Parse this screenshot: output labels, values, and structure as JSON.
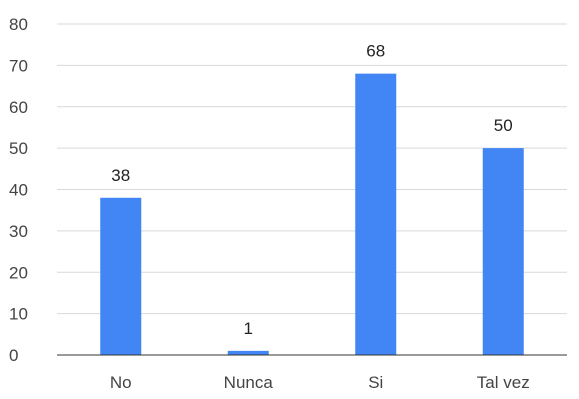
{
  "chart_data": {
    "type": "bar",
    "categories": [
      "No",
      "Nunca",
      "Si",
      "Tal vez"
    ],
    "values": [
      38,
      1,
      68,
      50
    ],
    "data_labels": [
      "38",
      "1",
      "68",
      "50"
    ],
    "title": "",
    "xlabel": "",
    "ylabel": "",
    "ylim": [
      0,
      80
    ],
    "yticks": [
      "0",
      "10",
      "20",
      "30",
      "40",
      "50",
      "60",
      "70",
      "80"
    ],
    "grid": true,
    "legend": "none",
    "colors": {
      "bar": "#4285f4",
      "grid": "#d9d9d9",
      "baseline": "#333333",
      "tick_text": "#444444",
      "label_text": "#222222"
    }
  }
}
